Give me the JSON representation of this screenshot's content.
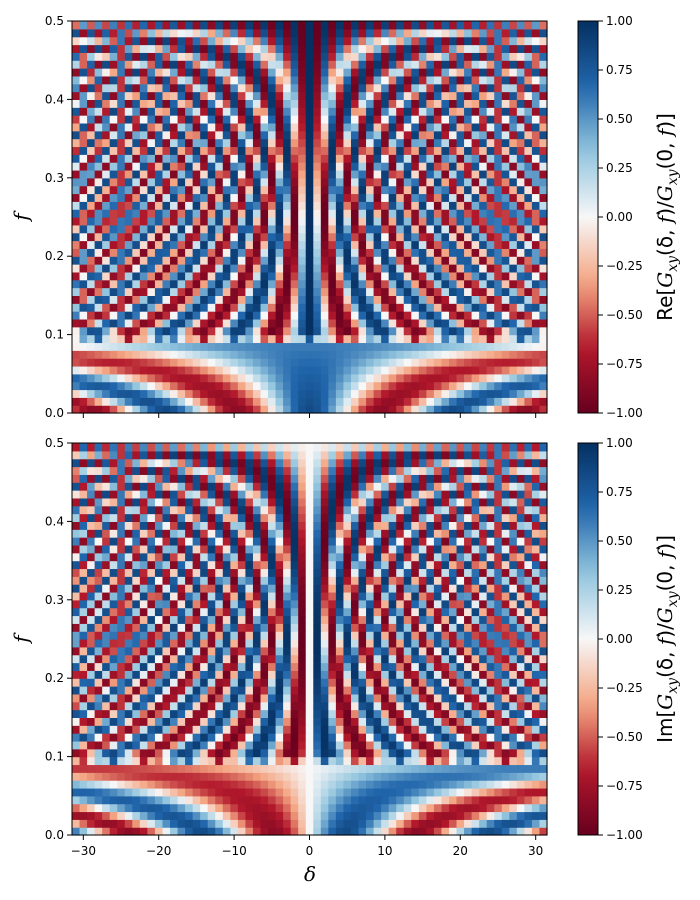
{
  "chart_data": [
    {
      "type": "heatmap",
      "name": "real-part",
      "title": "",
      "xlabel": "",
      "ylabel": "f",
      "xlim": [
        -31.5,
        31.5
      ],
      "ylim": [
        0.0,
        0.5
      ],
      "x_ticks": [
        -30,
        -20,
        -10,
        0,
        10,
        20,
        30
      ],
      "x_tick_labels": [],
      "y_ticks": [
        0.0,
        0.1,
        0.2,
        0.3,
        0.4,
        0.5
      ],
      "y_tick_labels": [
        "0.0",
        "0.1",
        "0.2",
        "0.3",
        "0.4",
        "0.5"
      ],
      "colormap": "RdBu",
      "color_range": [
        -1.0,
        1.0
      ],
      "colorbar": {
        "label": "Re[G_xy(δ,f)/G_xy(0,f)]",
        "label_parts": [
          "Re[",
          "G",
          "xy",
          "(δ, ",
          "f",
          ")/",
          "G",
          "xy",
          "(0, ",
          "f",
          ")]"
        ],
        "ticks": [
          1.0,
          0.75,
          0.5,
          0.25,
          0.0,
          -0.25,
          -0.5,
          -0.75,
          -1.0
        ],
        "tick_labels": [
          "1.00",
          "0.75",
          "0.50",
          "0.25",
          "0.00",
          "−0.25",
          "−0.50",
          "−0.75",
          "−1.00"
        ]
      },
      "grid": false,
      "x_bins": 63,
      "y_bins": 50,
      "cells": "Re G(δ,f)/G(0,f): 1 at δ=0 (deep blue ridge), alternating red/blue bands curving outward; bins every 1 in δ and 0.01 in f"
    },
    {
      "type": "heatmap",
      "name": "imaginary-part",
      "title": "",
      "xlabel": "δ",
      "ylabel": "f",
      "xlim": [
        -31.5,
        31.5
      ],
      "ylim": [
        0.0,
        0.5
      ],
      "x_ticks": [
        -30,
        -20,
        -10,
        0,
        10,
        20,
        30
      ],
      "x_tick_labels": [
        "−30",
        "−20",
        "−10",
        "0",
        "10",
        "20",
        "30"
      ],
      "y_ticks": [
        0.0,
        0.1,
        0.2,
        0.3,
        0.4,
        0.5
      ],
      "y_tick_labels": [
        "0.0",
        "0.1",
        "0.2",
        "0.3",
        "0.4",
        "0.5"
      ],
      "colormap": "RdBu",
      "color_range": [
        -1.0,
        1.0
      ],
      "colorbar": {
        "label": "Im[G_xy(δ,f)/G_xy(0,f)]",
        "label_parts": [
          "Im[",
          "G",
          "xy",
          "(δ, ",
          "f",
          ")/",
          "G",
          "xy",
          "(0, ",
          "f",
          ")]"
        ],
        "ticks": [
          1.0,
          0.75,
          0.5,
          0.25,
          0.0,
          -0.25,
          -0.5,
          -0.75,
          -1.0
        ],
        "tick_labels": [
          "1.00",
          "0.75",
          "0.50",
          "0.25",
          "0.00",
          "−0.25",
          "−0.50",
          "−0.75",
          "−1.00"
        ]
      },
      "grid": false,
      "x_bins": 63,
      "y_bins": 50,
      "cells": "Im G(δ,f)/G(0,f): 0 at δ=0 (white line), antisymmetric in δ with alternating red/blue bands; bins every 1 in δ and 0.01 in f"
    }
  ],
  "colors": {
    "deep_blue": "#053061",
    "blue": "#2166ac",
    "light_blue": "#92c5de",
    "white": "#f7f7f7",
    "light_red": "#f4a582",
    "red": "#b2182b",
    "deep_red": "#67001f"
  }
}
